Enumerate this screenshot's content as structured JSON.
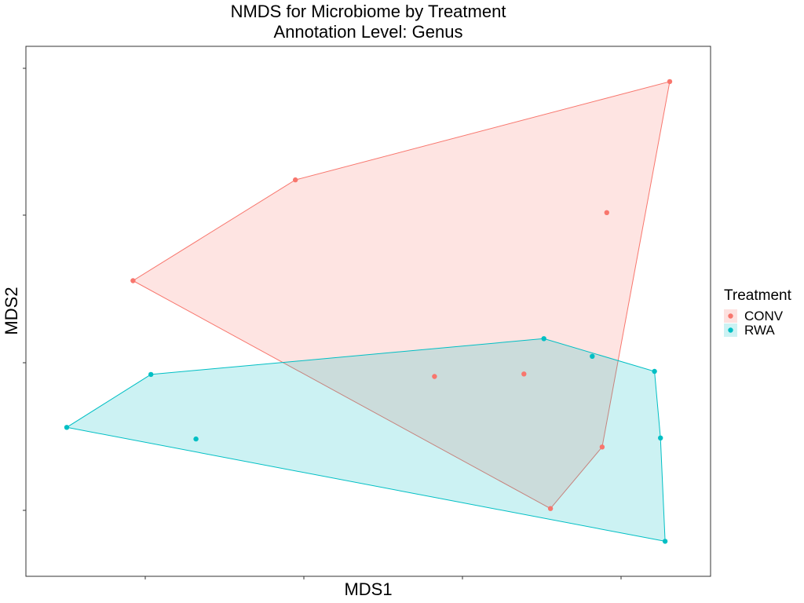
{
  "chart_data": {
    "type": "scatter",
    "title": "NMDS for Microbiome by Treatment",
    "subtitle": "Annotation Level: Genus",
    "xlabel": "MDS1",
    "ylabel": "MDS2",
    "xlim": [
      0,
      100
    ],
    "ylim": [
      0,
      100
    ],
    "grid": false,
    "legend": {
      "title": "Treatment",
      "position": "right"
    },
    "hulls": true,
    "series": [
      {
        "name": "CONV",
        "color": "#F8766D",
        "hull_fill": "#FDE1DF",
        "points": [
          {
            "x": 95.5,
            "y": 95.5
          },
          {
            "x": 39.0,
            "y": 76.0
          },
          {
            "x": 14.5,
            "y": 56.0
          },
          {
            "x": 86.0,
            "y": 69.5
          },
          {
            "x": 60.0,
            "y": 37.0
          },
          {
            "x": 73.5,
            "y": 37.5
          },
          {
            "x": 85.3,
            "y": 23.0
          },
          {
            "x": 77.5,
            "y": 10.8
          }
        ]
      },
      {
        "name": "RWA",
        "color": "#00BFC4",
        "hull_fill": "#CCF2F3",
        "points": [
          {
            "x": 76.5,
            "y": 44.5
          },
          {
            "x": 83.8,
            "y": 41.0
          },
          {
            "x": 93.2,
            "y": 38.0
          },
          {
            "x": 17.2,
            "y": 37.4
          },
          {
            "x": 4.5,
            "y": 26.9
          },
          {
            "x": 24.0,
            "y": 24.6
          },
          {
            "x": 94.1,
            "y": 24.8
          },
          {
            "x": 94.8,
            "y": 4.3
          }
        ]
      }
    ]
  }
}
